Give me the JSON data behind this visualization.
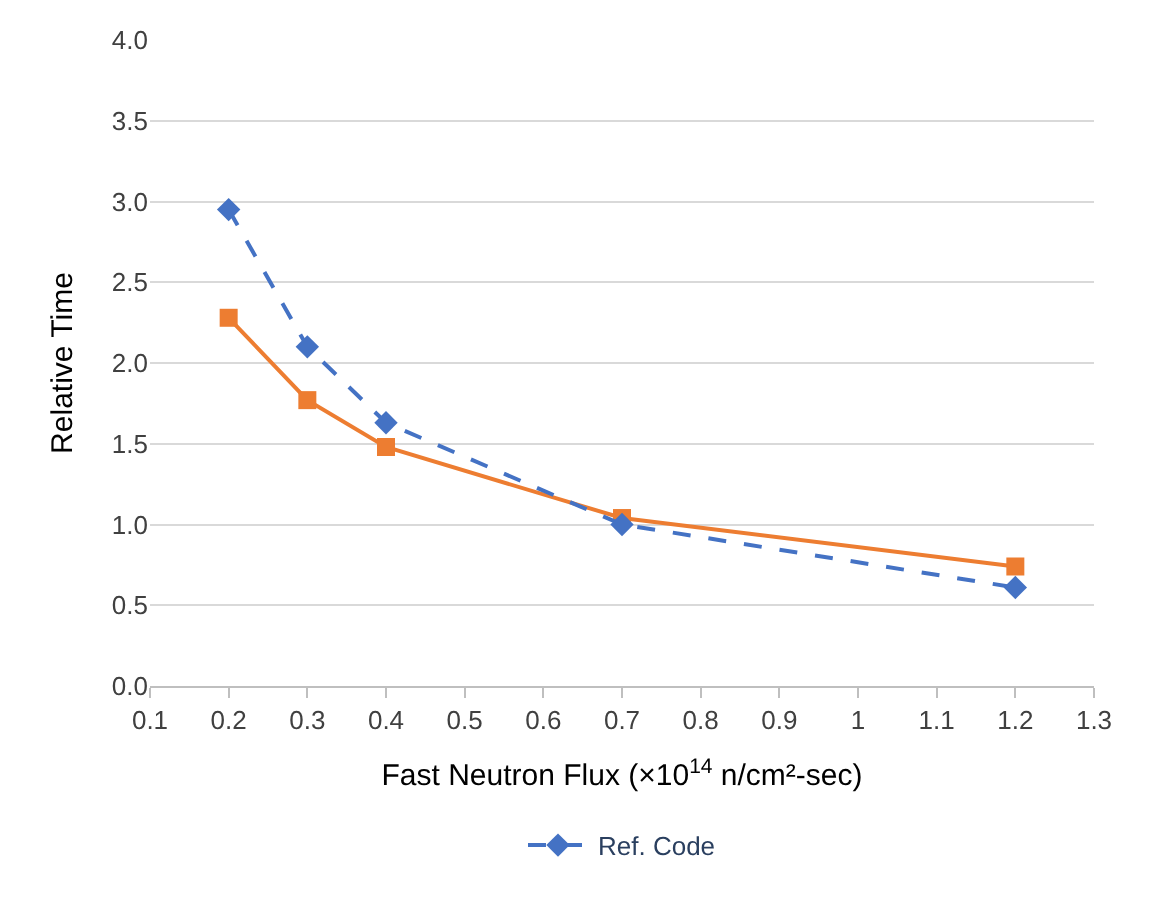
{
  "chart_data": {
    "type": "line",
    "xlabel": "Fast Neutron Flux (×10$^{14}$ n/cm²-sec)",
    "ylabel": "Relative Time",
    "x": [
      0.2,
      0.3,
      0.4,
      0.7,
      1.2
    ],
    "series": [
      {
        "name": "Ref. Code",
        "color": "#4472c4",
        "values": [
          2.95,
          2.1,
          1.63,
          1.0,
          0.61
        ],
        "marker": "diamond",
        "line_style": "dashed"
      },
      {
        "color": "#ed7d31",
        "values": [
          2.28,
          1.77,
          1.48,
          1.04,
          0.74
        ],
        "marker": "square",
        "line_style": "solid"
      }
    ],
    "xlim": [
      0.1,
      1.3
    ],
    "xticks": [
      0.1,
      0.2,
      0.3,
      0.4,
      0.5,
      0.6,
      0.7,
      0.8,
      0.9,
      1,
      1.1,
      1.2,
      1.3
    ],
    "ylim": [
      0,
      4
    ],
    "yticks": [
      {
        "value": 0,
        "label": "0.0"
      },
      {
        "value": 0.5,
        "label": "0.5"
      },
      {
        "value": 1,
        "label": "1.0"
      },
      {
        "value": 1.5,
        "label": "1.5"
      },
      {
        "value": 2,
        "label": "2.0"
      },
      {
        "value": 2.5,
        "label": "2.5"
      },
      {
        "value": 3,
        "label": "3.0"
      },
      {
        "value": 3.5,
        "label": "3.5"
      },
      {
        "value": 4,
        "label": "4.0"
      }
    ],
    "grid": "y",
    "legend": "bottom"
  }
}
